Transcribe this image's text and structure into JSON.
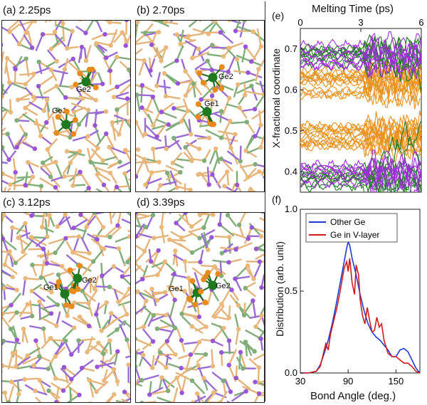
{
  "panels": [
    {
      "id": "a",
      "label": "(a) 2.25ps",
      "atoms": [
        "Ge1",
        "Ge2"
      ]
    },
    {
      "id": "b",
      "label": "(b) 2.70ps",
      "atoms": [
        "Ge2",
        "Ge1"
      ]
    },
    {
      "id": "c",
      "label": "(c) 3.12ps",
      "atoms": [
        "Ge1",
        "Ge2"
      ]
    },
    {
      "id": "d",
      "label": "(d) 3.39ps",
      "atoms": [
        "Ge1",
        "Ge2"
      ]
    }
  ],
  "colors": {
    "orange_atom": "#e88a1c",
    "tan_atom": "#eab878",
    "purple_atom": "#9a55d6",
    "green_atom": "#1e7a1e",
    "bond_tan": "#e5b47a",
    "bond_green": "#7fae78",
    "bond_purple": "#9b6cd1"
  },
  "panel_e": {
    "label": "(e)",
    "top_axis_title": "Melting Time (ps)",
    "ylabel": "X-fractional coordinate",
    "chart_data": {
      "type": "line",
      "xlim": [
        0,
        6
      ],
      "ylim": [
        0.35,
        0.75
      ],
      "xticks": [
        "0",
        "3",
        "6"
      ],
      "yticks": [
        "0.4",
        "0.5",
        "0.6",
        "0.7"
      ],
      "series_groups": [
        {
          "color": "#e8931f",
          "bands": [
            0.615,
            0.485
          ],
          "count": 26
        },
        {
          "color": "#1e7a1e",
          "bands": [
            0.69,
            0.39
          ],
          "count": 16
        },
        {
          "color": "#9b2fd6",
          "bands": [
            0.69,
            0.39
          ],
          "count": 14
        }
      ]
    }
  },
  "panel_f": {
    "label": "(f)",
    "xlabel": "Bond Angle (deg.)",
    "ylabel": "Distribution (arb. unit)",
    "chart_data": {
      "type": "line",
      "xlim": [
        30,
        180
      ],
      "ylim": [
        0,
        1.0
      ],
      "xticks": [
        "30",
        "90",
        "150"
      ],
      "yticks": [
        "0.0",
        "0.5",
        "1.0"
      ],
      "series": [
        {
          "name": "Other Ge",
          "color": "#1f3bd6",
          "x": [
            30,
            40,
            50,
            55,
            60,
            65,
            70,
            75,
            80,
            85,
            88,
            90,
            92,
            95,
            100,
            105,
            110,
            115,
            120,
            125,
            130,
            135,
            140,
            145,
            150,
            155,
            160,
            165,
            170,
            175,
            180
          ],
          "y": [
            0,
            0,
            0.01,
            0.05,
            0.12,
            0.2,
            0.3,
            0.42,
            0.55,
            0.68,
            0.76,
            0.8,
            0.78,
            0.7,
            0.6,
            0.48,
            0.38,
            0.3,
            0.25,
            0.22,
            0.2,
            0.17,
            0.14,
            0.1,
            0.1,
            0.14,
            0.15,
            0.13,
            0.08,
            0.03,
            0
          ]
        },
        {
          "name": "Ge in V-layer",
          "color": "#d01c1c",
          "x": [
            30,
            40,
            50,
            55,
            58,
            62,
            65,
            68,
            72,
            76,
            80,
            85,
            88,
            90,
            92,
            95,
            98,
            100,
            103,
            105,
            108,
            111,
            114,
            117,
            120,
            123,
            126,
            129,
            132,
            135,
            140,
            145,
            150,
            155,
            160,
            165,
            170,
            175,
            180
          ],
          "y": [
            0,
            0,
            0.01,
            0.04,
            0.1,
            0.18,
            0.14,
            0.24,
            0.32,
            0.4,
            0.5,
            0.64,
            0.68,
            0.62,
            0.7,
            0.55,
            0.48,
            0.66,
            0.6,
            0.45,
            0.35,
            0.3,
            0.4,
            0.32,
            0.25,
            0.26,
            0.34,
            0.28,
            0.3,
            0.2,
            0.12,
            0.1,
            0.1,
            0.08,
            0.06,
            0.06,
            0.04,
            0.01,
            0
          ]
        }
      ]
    }
  }
}
